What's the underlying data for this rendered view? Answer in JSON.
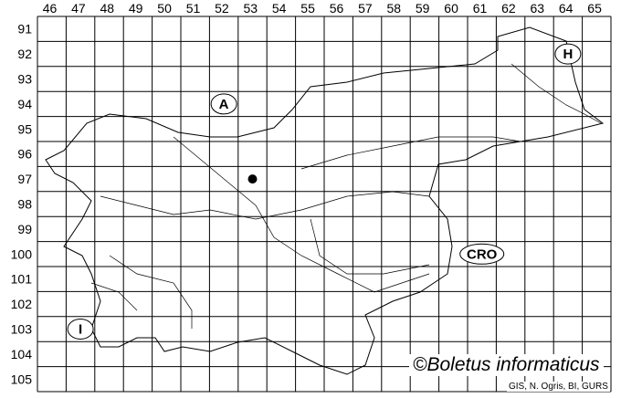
{
  "grid": {
    "columns": [
      "46",
      "47",
      "48",
      "49",
      "50",
      "51",
      "52",
      "53",
      "54",
      "55",
      "56",
      "57",
      "58",
      "59",
      "60",
      "61",
      "62",
      "63",
      "64",
      "65"
    ],
    "rows": [
      "91",
      "92",
      "93",
      "94",
      "95",
      "96",
      "97",
      "98",
      "99",
      "100",
      "101",
      "102",
      "103",
      "104",
      "105"
    ]
  },
  "countries": [
    {
      "label": "A",
      "col": "52",
      "row": "94"
    },
    {
      "label": "H",
      "col": "64",
      "row": "92"
    },
    {
      "label": "CRO",
      "col": "61",
      "row": "100"
    },
    {
      "label": "I",
      "col": "47",
      "row": "103"
    }
  ],
  "occurrence": {
    "col": "53",
    "row": "97",
    "color": "#000000"
  },
  "copyright": "©Boletus informaticus",
  "credit": "GIS, N. Ogris, BI, GURS"
}
